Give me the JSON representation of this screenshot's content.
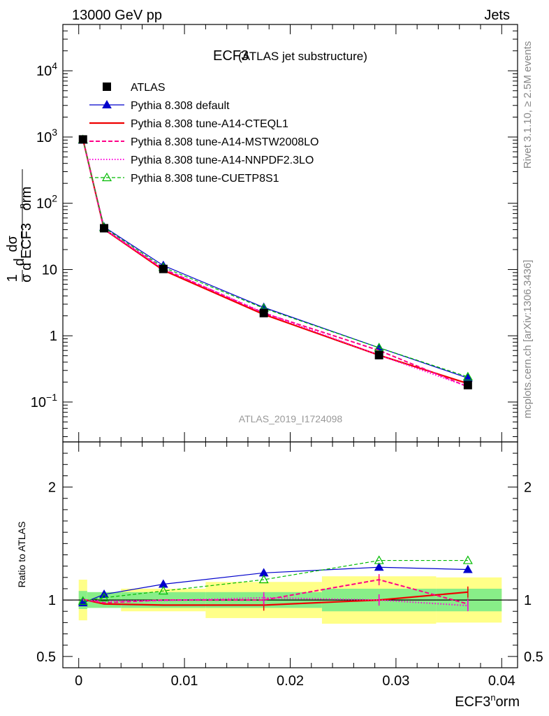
{
  "header": {
    "left": "13000 GeV pp",
    "right": "Jets"
  },
  "side": {
    "rivet": "Rivet 3.1.10, ≥ 2.5M events",
    "mcplots": "mcplots.cern.ch [arXiv:1306.3436]"
  },
  "chart_data": {
    "type": "line",
    "title": "ECF3",
    "subtitle": "(ATLAS jet substructure)",
    "watermark": "ATLAS_2019_I1724098",
    "xlabel": "ECF3^norm",
    "ylabel_top": "(1/σ) dσ/d ECF3^norm",
    "ylabel_bottom": "Ratio to ATLAS",
    "xlim": [
      -0.0015,
      0.0415
    ],
    "x_ticks": [
      "0",
      "0.01",
      "0.02",
      "0.03",
      "0.04"
    ],
    "y_top_scale": "log",
    "y_top_lim": [
      0.025,
      50000
    ],
    "y_top_ticks": [
      {
        "v": 0.1,
        "label": "10",
        "exp": "−1"
      },
      {
        "v": 1,
        "label": "1",
        "exp": ""
      },
      {
        "v": 10,
        "label": "10",
        "exp": ""
      },
      {
        "v": 100,
        "label": "10",
        "exp": "2"
      },
      {
        "v": 1000,
        "label": "10",
        "exp": "3"
      },
      {
        "v": 10000,
        "label": "10",
        "exp": "4"
      }
    ],
    "y_bottom_lim": [
      0.4,
      2.4
    ],
    "y_bottom_ticks": [
      "0.5",
      "1",
      "2"
    ],
    "bins": [
      [
        0,
        0.0008
      ],
      [
        0.0008,
        0.004
      ],
      [
        0.004,
        0.012
      ],
      [
        0.012,
        0.023
      ],
      [
        0.023,
        0.0338
      ],
      [
        0.0338,
        0.04
      ]
    ],
    "x": [
      0.0004,
      0.0024,
      0.008,
      0.0175,
      0.0284,
      0.0368
    ],
    "band_inner": [
      [
        0.92,
        1.08
      ],
      [
        0.93,
        1.07
      ],
      [
        0.93,
        1.07
      ],
      [
        0.93,
        1.07
      ],
      [
        0.9,
        1.1
      ],
      [
        0.9,
        1.1
      ]
    ],
    "band_outer": [
      [
        0.82,
        1.18
      ],
      [
        0.94,
        1.06
      ],
      [
        0.9,
        1.1
      ],
      [
        0.84,
        1.16
      ],
      [
        0.79,
        1.21
      ],
      [
        0.8,
        1.2
      ]
    ],
    "data": {
      "name": "ATLAS",
      "values": [
        920,
        42,
        10.2,
        2.2,
        0.51,
        0.18
      ]
    },
    "series": [
      {
        "name": "Pythia 8.308 default",
        "color": "#0000cc",
        "style": "solid",
        "marker": "triangle",
        "values": [
          895,
          44,
          11.5,
          2.68,
          0.66,
          0.23
        ],
        "ratio": [
          0.975,
          1.05,
          1.14,
          1.24,
          1.29,
          1.27
        ]
      },
      {
        "name": "Pythia 8.308 tune-A14-CTEQL1",
        "color": "#ee0000",
        "style": "solid-thick",
        "marker": "none",
        "values": [
          925,
          40.5,
          9.75,
          2.1,
          0.51,
          0.19
        ],
        "ratio": [
          1.005,
          0.965,
          0.955,
          0.955,
          1.0,
          1.07
        ]
      },
      {
        "name": "Pythia 8.308 tune-A14-MSTW2008LO",
        "color": "#ff0088",
        "style": "dashed",
        "marker": "none",
        "values": [
          925,
          41,
          10.2,
          2.2,
          0.6,
          0.17
        ],
        "ratio": [
          1.005,
          0.975,
          1.0,
          1.0,
          1.18,
          0.965
        ]
      },
      {
        "name": "Pythia 8.308 tune-A14-NNPDF2.3LO",
        "color": "#ff00dd",
        "style": "dotted",
        "marker": "none",
        "values": [
          925,
          41,
          10.2,
          2.24,
          0.51,
          0.172
        ],
        "ratio": [
          1.0,
          0.99,
          0.995,
          1.02,
          1.0,
          0.95
        ]
      },
      {
        "name": "Pythia 8.308 tune-CUETP8S1",
        "color": "#00bb00",
        "style": "dashed-thin",
        "marker": "triangle-open",
        "values": [
          915,
          43,
          10.8,
          2.6,
          0.66,
          0.24
        ],
        "ratio": [
          0.99,
          1.02,
          1.08,
          1.18,
          1.35,
          1.35
        ]
      }
    ]
  }
}
